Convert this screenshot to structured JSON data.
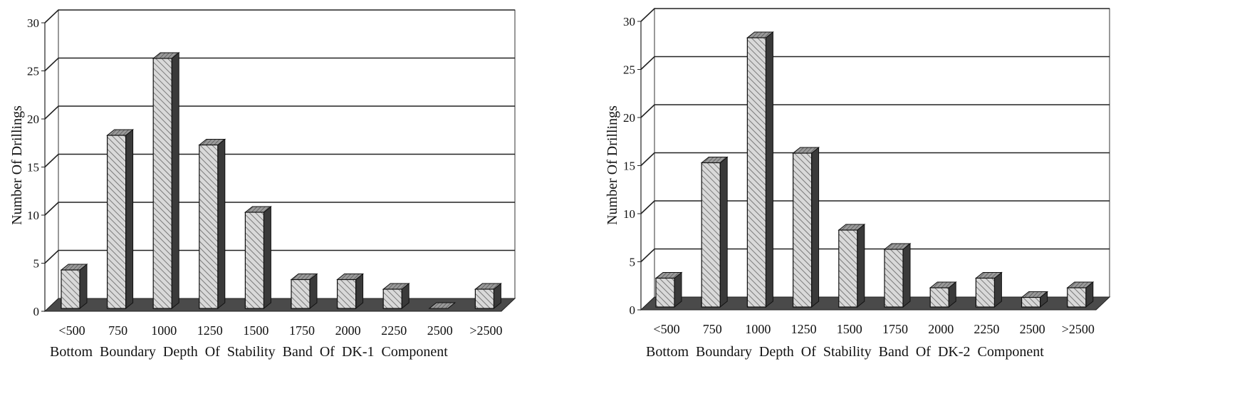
{
  "chart_data": [
    {
      "type": "bar",
      "categories": [
        "<500",
        "750",
        "1000",
        "1250",
        "1500",
        "1750",
        "2000",
        "2250",
        "2500",
        ">2500"
      ],
      "values": [
        4,
        18,
        26,
        17,
        10,
        3,
        3,
        2,
        0,
        2
      ],
      "xlabel": "Bottom  Boundary  Depth  Of  Stability  Band  Of  DK-1  Component",
      "ylabel": "Number Of Drillings",
      "ylim": [
        0,
        30
      ],
      "yticks": [
        0,
        5,
        10,
        15,
        20,
        25,
        30
      ],
      "grid": true,
      "style": "3d-hatched",
      "colors": {
        "bar_face": "#d4d4d4",
        "bar_side": "#3a3a3a",
        "floor": "#4a4a4a",
        "grid": "#222222"
      }
    },
    {
      "type": "bar",
      "categories": [
        "<500",
        "750",
        "1000",
        "1250",
        "1500",
        "1750",
        "2000",
        "2250",
        "2500",
        ">2500"
      ],
      "values": [
        3,
        15,
        28,
        16,
        8,
        6,
        2,
        3,
        1,
        2
      ],
      "xlabel": "Bottom  Boundary  Depth  Of  Stability  Band  Of  DK-2  Component",
      "ylabel": "Number Of Drillings",
      "ylim": [
        0,
        30
      ],
      "yticks": [
        0,
        5,
        10,
        15,
        20,
        25,
        30
      ],
      "grid": true,
      "style": "3d-hatched",
      "colors": {
        "bar_face": "#d4d4d4",
        "bar_side": "#3a3a3a",
        "floor": "#4a4a4a",
        "grid": "#222222"
      }
    }
  ]
}
